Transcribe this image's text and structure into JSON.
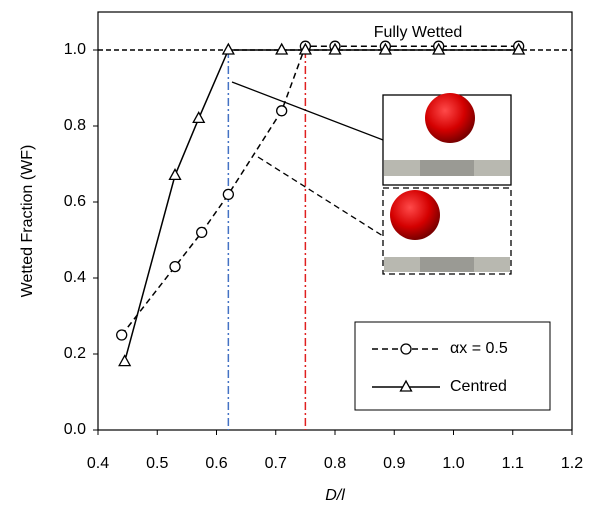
{
  "chart_data": {
    "type": "line",
    "xlabel": "D/l",
    "ylabel": "Wetted Fraction (WF)",
    "annotation": "Fully Wetted",
    "hline": 1.0,
    "vlines": [
      {
        "x": 0.62,
        "color": "#4472c4"
      },
      {
        "x": 0.75,
        "color": "#e02020"
      }
    ],
    "xlim": [
      0.4,
      1.2
    ],
    "xticks": [
      0.4,
      0.5,
      0.6,
      0.7,
      0.8,
      0.9,
      {
        "value": 1,
        "label": "1.0"
      },
      1.1,
      1.2
    ],
    "ylim": [
      0,
      1.1
    ],
    "yticks": [
      {
        "value": 0,
        "label": "0.0"
      },
      0.2,
      0.4,
      0.6,
      0.8,
      {
        "value": 1,
        "label": "1.0"
      }
    ],
    "series": [
      {
        "name": "αx = 0.5",
        "color": "#000000",
        "dash": true,
        "marker": "circle",
        "x": [
          0.44,
          0.53,
          0.575,
          0.62,
          0.71,
          0.75,
          0.8,
          0.885,
          0.975,
          1.11
        ],
        "values": [
          0.25,
          0.43,
          0.52,
          0.62,
          0.84,
          1.01,
          1.01,
          1.01,
          1.01,
          1.01
        ]
      },
      {
        "name": "Centred",
        "color": "#000000",
        "dash": false,
        "marker": "triangle",
        "x": [
          0.445,
          0.53,
          0.57,
          0.62,
          0.71,
          0.75,
          0.8,
          0.885,
          0.975,
          1.11
        ],
        "values": [
          0.18,
          0.67,
          0.82,
          1.0,
          1.0,
          1.0,
          1.0,
          1.0,
          1.0,
          1.0
        ]
      }
    ]
  }
}
